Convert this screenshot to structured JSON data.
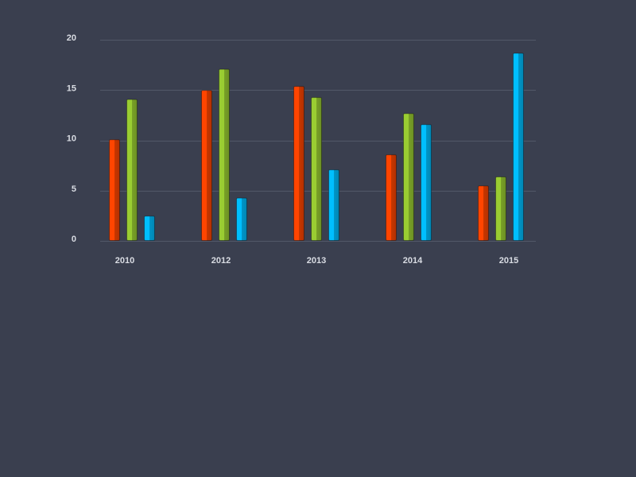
{
  "chart_data": {
    "type": "bar",
    "title": "",
    "xlabel": "",
    "ylabel": "",
    "categories": [
      "2010",
      "2012",
      "2013",
      "2014",
      "2015"
    ],
    "series": [
      {
        "color": "#ff4500",
        "values": [
          10.1,
          15.0,
          15.4,
          8.6,
          5.5
        ]
      },
      {
        "color": "#9acd32",
        "values": [
          14.1,
          17.1,
          14.3,
          12.7,
          6.4
        ]
      },
      {
        "color": "#00bfff",
        "values": [
          2.5,
          4.3,
          7.1,
          11.6,
          18.7
        ]
      }
    ],
    "ylim": [
      0,
      20
    ],
    "yticks": [
      "0",
      "5",
      "10",
      "15",
      "20"
    ],
    "grid": true,
    "legend": "none"
  }
}
